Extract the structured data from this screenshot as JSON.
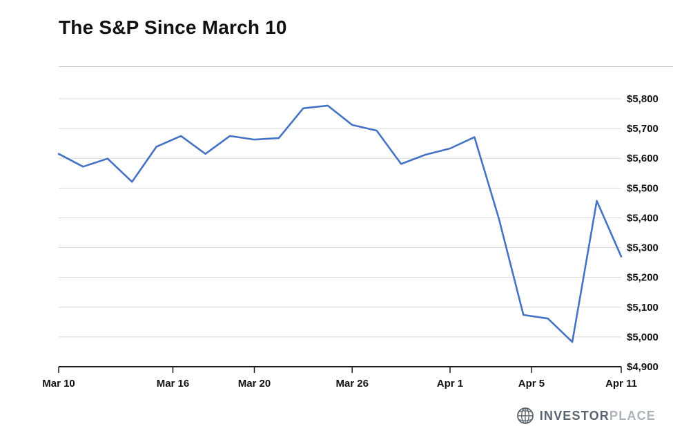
{
  "chart_data": {
    "type": "line",
    "title": "The S&P Since March 10",
    "x": [
      "Mar 10",
      "Mar 11",
      "Mar 12",
      "Mar 13",
      "Mar 14",
      "Mar 17",
      "Mar 18",
      "Mar 19",
      "Mar 20",
      "Mar 21",
      "Mar 24",
      "Mar 25",
      "Mar 26",
      "Mar 27",
      "Mar 28",
      "Mar 31",
      "Apr 1",
      "Apr 2",
      "Apr 3",
      "Apr 4",
      "Apr 7",
      "Apr 8",
      "Apr 9",
      "Apr 11"
    ],
    "values": [
      5615,
      5572,
      5599,
      5521,
      5639,
      5675,
      5615,
      5675,
      5663,
      5668,
      5768,
      5777,
      5712,
      5693,
      5581,
      5612,
      5633,
      5671,
      5397,
      5074,
      5062,
      4983,
      5457,
      5270
    ],
    "x_ticks": [
      {
        "label": "Mar 10",
        "index": 0
      },
      {
        "label": "Mar 16",
        "index": 4.67
      },
      {
        "label": "Mar 20",
        "index": 8
      },
      {
        "label": "Mar 26",
        "index": 12
      },
      {
        "label": "Apr 1",
        "index": 16
      },
      {
        "label": "Apr 5",
        "index": 19.33
      },
      {
        "label": "Apr 11",
        "index": 23
      }
    ],
    "y_ticks": [
      {
        "value": 4900,
        "label": "$4,900"
      },
      {
        "value": 5000,
        "label": "$5,000"
      },
      {
        "value": 5100,
        "label": "$5,100"
      },
      {
        "value": 5200,
        "label": "$5,200"
      },
      {
        "value": 5300,
        "label": "$5,300"
      },
      {
        "value": 5400,
        "label": "$5,400"
      },
      {
        "value": 5500,
        "label": "$5,500"
      },
      {
        "value": 5600,
        "label": "$5,600"
      },
      {
        "value": 5700,
        "label": "$5,700"
      },
      {
        "value": 5800,
        "label": "$5,800"
      }
    ],
    "ylim": [
      4900,
      5800
    ],
    "y_axis_side": "right",
    "grid": true,
    "legend": "none",
    "line_color": "#4472c4",
    "grid_color": "#d9d9d9",
    "axis_color": "#1a1a1a",
    "tick_label_color": "#111111"
  },
  "footer": {
    "logo_investor": "INVESTOR",
    "logo_place": "PLACE",
    "globe_icon": "globe-icon",
    "color_investor": "#5a646e",
    "color_place": "#abb2b8"
  }
}
